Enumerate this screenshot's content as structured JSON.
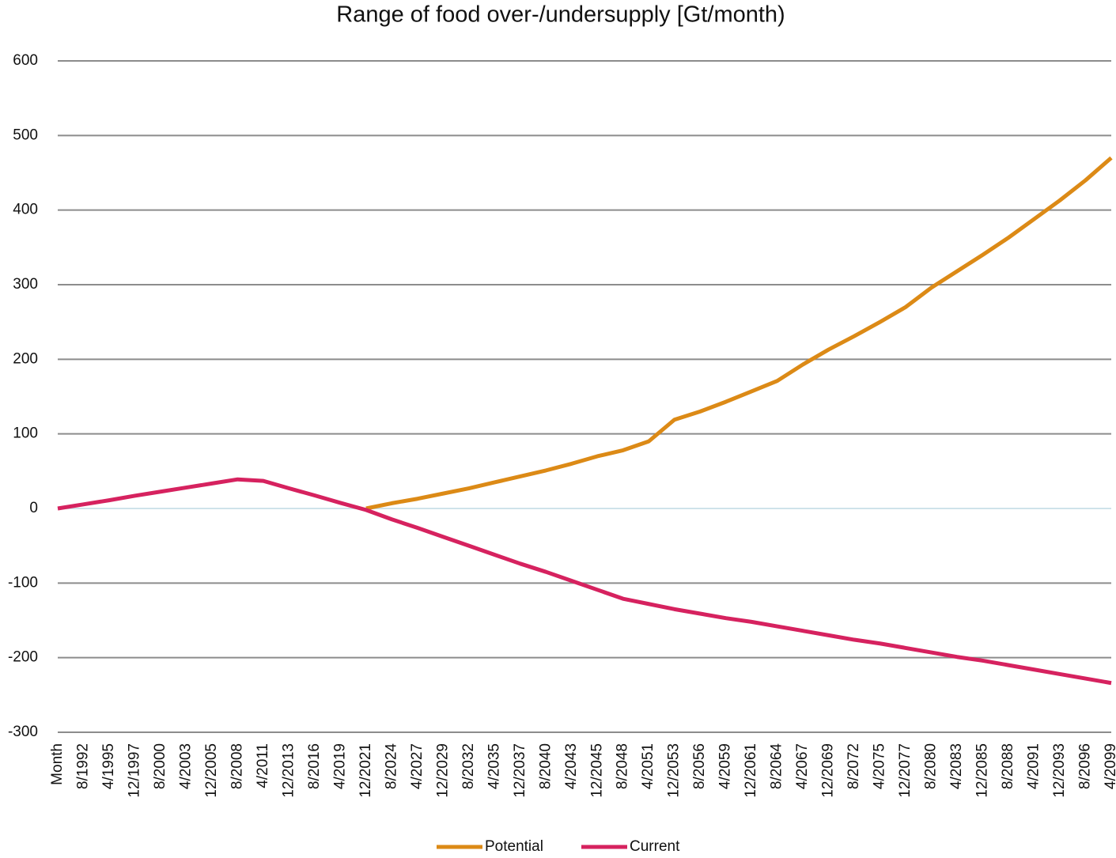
{
  "chart_data": {
    "type": "line",
    "title": "Range of  food over-/undersupply [Gt/month)",
    "categories": [
      "Month",
      "8/1992",
      "4/1995",
      "12/1997",
      "8/2000",
      "4/2003",
      "12/2005",
      "8/2008",
      "4/2011",
      "12/2013",
      "8/2016",
      "4/2019",
      "12/2021",
      "8/2024",
      "4/2027",
      "12/2029",
      "8/2032",
      "4/2035",
      "12/2037",
      "8/2040",
      "4/2043",
      "12/2045",
      "8/2048",
      "4/2051",
      "12/2053",
      "8/2056",
      "4/2059",
      "12/2061",
      "8/2064",
      "4/2067",
      "12/2069",
      "8/2072",
      "4/2075",
      "12/2077",
      "8/2080",
      "4/2083",
      "12/2085",
      "8/2088",
      "4/2091",
      "12/2093",
      "8/2096",
      "4/2099"
    ],
    "series": [
      {
        "name": "Potential",
        "color": "#dc8a16",
        "values": [
          null,
          null,
          null,
          null,
          null,
          null,
          null,
          null,
          null,
          null,
          null,
          null,
          0,
          7,
          13,
          20,
          27,
          35,
          43,
          51,
          60,
          70,
          78,
          90,
          119,
          130,
          143,
          157,
          171,
          193,
          213,
          231,
          250,
          270,
          296,
          318,
          340,
          363,
          388,
          413,
          440,
          470
        ]
      },
      {
        "name": "Current",
        "color": "#d6225f",
        "values": [
          0,
          5.5,
          11,
          17,
          22.5,
          28,
          33.5,
          39,
          37,
          27,
          17.5,
          7.5,
          -2,
          -14.6,
          -26,
          -38,
          -50,
          -62,
          -74,
          -85,
          -97,
          -109,
          -121,
          -128,
          -135,
          -141,
          -147,
          -152,
          -158,
          -164,
          -170,
          -176,
          -181,
          -187,
          -193,
          -199,
          -204,
          -210,
          -216,
          -222,
          -228,
          -234
        ]
      }
    ],
    "ylim": [
      -300,
      600
    ],
    "yticks": [
      -300,
      -200,
      -100,
      0,
      100,
      200,
      300,
      400,
      500,
      600
    ],
    "grid": true,
    "legend": "bottom"
  }
}
